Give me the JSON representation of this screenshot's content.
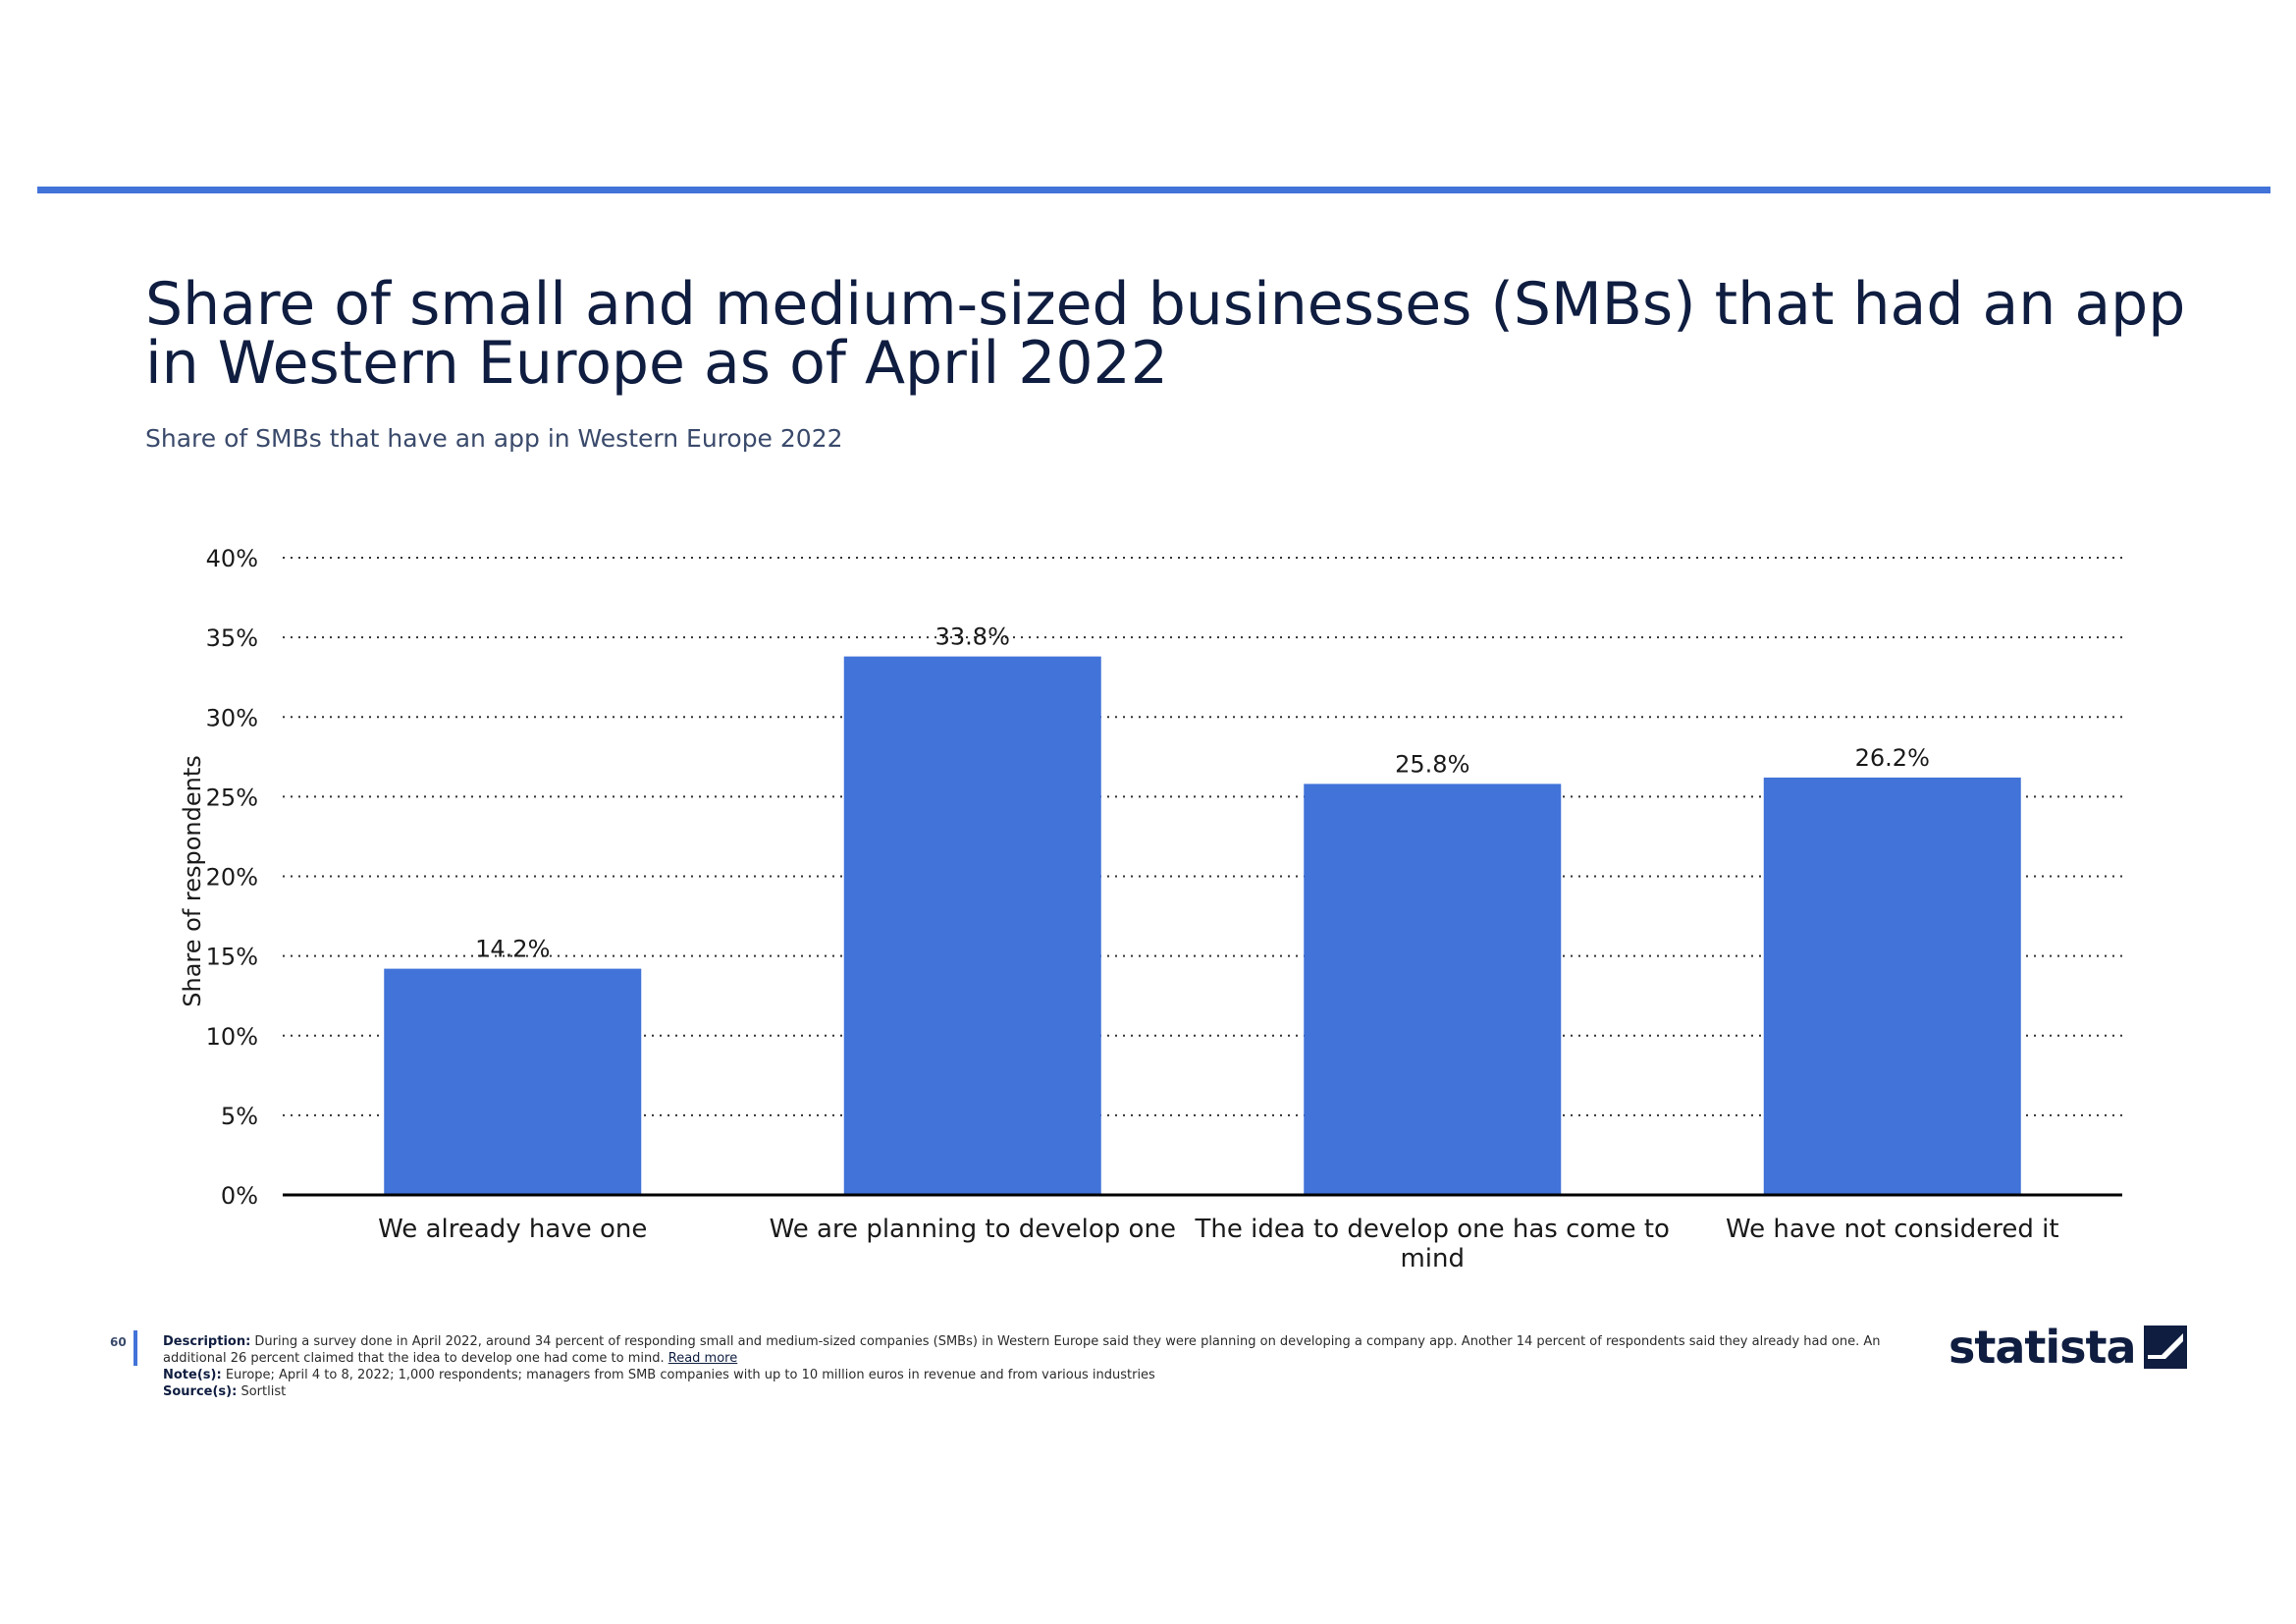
{
  "title": "Share of small and medium-sized businesses (SMBs) that had an app in Western Europe as of April 2022",
  "subtitle": "Share of SMBs that have an app in Western Europe 2022",
  "colors": {
    "accent": "#4173d9",
    "bar": "#4173d9",
    "title": "#0f1d40"
  },
  "chart_data": {
    "type": "bar",
    "title": "Share of small and medium-sized businesses (SMBs) that had an app in Western Europe as of April 2022",
    "subtitle": "Share of SMBs that have an app in Western Europe 2022",
    "xlabel": "",
    "ylabel": "Share of respondents",
    "categories": [
      [
        "We already have one"
      ],
      [
        "We are planning to develop one"
      ],
      [
        "The idea to develop one has come to",
        "mind"
      ],
      [
        "We have not considered it"
      ]
    ],
    "values": [
      14.2,
      33.8,
      25.8,
      26.2
    ],
    "data_labels": [
      "14.2%",
      "33.8%",
      "25.8%",
      "26.2%"
    ],
    "ylim": [
      0,
      40
    ],
    "yticks": [
      0,
      5,
      10,
      15,
      20,
      25,
      30,
      35,
      40
    ],
    "ytick_labels": [
      "0%",
      "5%",
      "10%",
      "15%",
      "20%",
      "25%",
      "30%",
      "35%",
      "40%"
    ],
    "grid": "horizontal dotted",
    "legend": "none"
  },
  "footer": {
    "page_number": "60",
    "description_label": "Description:",
    "description_text": "During a survey done in April 2022, around 34 percent of responding small and medium-sized companies (SMBs) in Western Europe said they were planning on developing a company app. Another 14 percent of respondents said they already had one. An additional 26 percent claimed that the idea to develop one had come to mind.",
    "read_more": "Read more",
    "notes_label": "Note(s):",
    "notes_text": "Europe; April 4 to 8, 2022; 1,000 respondents; managers from SMB companies with up to 10 million euros in revenue and from various industries",
    "source_label": "Source(s):",
    "source_text": "Sortlist"
  },
  "logo": {
    "text": "statista",
    "icon": "statista-logo-icon"
  }
}
